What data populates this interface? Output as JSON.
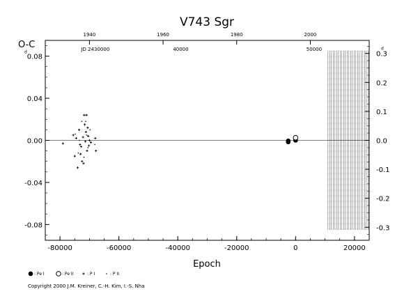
{
  "chart_data": {
    "type": "scatter",
    "title": "V743  Sgr",
    "ylabel": "O-C",
    "xlabel": "Epoch",
    "xlim": [
      -85000,
      25000
    ],
    "ylim": [
      -0.095,
      0.095
    ],
    "right_ylim": [
      -0.345,
      0.345
    ],
    "x_ticks": [
      "-80000",
      "-60000",
      "-40000",
      "-20000",
      "0",
      "20000"
    ],
    "y_ticks": [
      "-0.08",
      "-0.04",
      "0.00",
      "0.04",
      "0.08"
    ],
    "right_ticks": [
      "-0.3",
      "-0.2",
      "-0.1",
      "0.0",
      "0.1",
      "0.2",
      "0.3"
    ],
    "right_unit": "d",
    "left_unit": "d",
    "top_year_ticks": [
      {
        "year": "1940",
        "epoch": -70000
      },
      {
        "year": "1960",
        "epoch": -45000
      },
      {
        "year": "1980",
        "epoch": -20000
      },
      {
        "year": "2000",
        "epoch": 5000
      }
    ],
    "top_jd_labels": [
      {
        "label": "JD 2430000",
        "epoch": -68000
      },
      {
        "label": "40000",
        "epoch": -39000
      },
      {
        "label": "50000",
        "epoch": 6300
      }
    ],
    "grid": false,
    "hatched_region": [
      11000,
      25000
    ],
    "series": [
      {
        "name": ": Pe I",
        "marker": "filled-circle",
        "points": [
          [
            -2500,
            -0.0015
          ],
          [
            -2500,
            -0.0005
          ],
          [
            0,
            0.0
          ],
          [
            0,
            0.0005
          ]
        ]
      },
      {
        "name": ": Pe II",
        "marker": "open-circle",
        "points": [
          [
            0,
            0.0025
          ]
        ]
      },
      {
        "name": ": P I",
        "marker": "plus",
        "points": [
          [
            -79000,
            -0.003
          ],
          [
            -75500,
            0.005
          ],
          [
            -75000,
            -0.015
          ],
          [
            -74500,
            0.002
          ],
          [
            -74000,
            -0.026
          ],
          [
            -73500,
            0.01
          ],
          [
            -73200,
            -0.004
          ],
          [
            -73000,
            -0.013
          ],
          [
            -72800,
            -0.006
          ],
          [
            -72500,
            -0.02
          ],
          [
            -72200,
            0.003
          ],
          [
            -72000,
            -0.022
          ],
          [
            -71800,
            0.024
          ],
          [
            -71600,
            0.015
          ],
          [
            -71400,
            -0.001
          ],
          [
            -71200,
            0.008
          ],
          [
            -71000,
            0.024
          ],
          [
            -70800,
            -0.01
          ],
          [
            -70600,
            0.012
          ],
          [
            -70400,
            0.004
          ],
          [
            -70200,
            -0.005
          ],
          [
            -70000,
            0.0
          ],
          [
            -69500,
            -0.002
          ],
          [
            -68000,
            0.002
          ],
          [
            -67800,
            -0.01
          ]
        ]
      },
      {
        "name": ": P II",
        "marker": "dot",
        "points": [
          [
            -74800,
            0.006
          ],
          [
            -73800,
            -0.012
          ],
          [
            -72600,
            0.018
          ],
          [
            -71900,
            -0.016
          ],
          [
            -70900,
            0.005
          ],
          [
            -70500,
            -0.007
          ],
          [
            -69800,
            0.01
          ],
          [
            -68200,
            -0.004
          ],
          [
            -71300,
            0.018
          ],
          [
            -73400,
            0.0
          ]
        ]
      }
    ]
  },
  "copyright": "Copyright 2000 J.M. Kreiner, C.-H. Kim, I.-S. Nha"
}
